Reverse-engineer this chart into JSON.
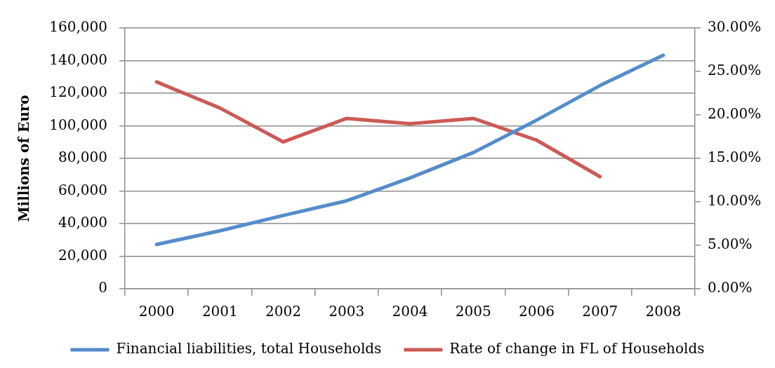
{
  "chart_data": {
    "type": "line",
    "categories": [
      "2000",
      "2001",
      "2002",
      "2003",
      "2004",
      "2005",
      "2006",
      "2007",
      "2008"
    ],
    "ylabel": "Millions of Euro",
    "ylim": [
      0,
      160000
    ],
    "yticks": [
      {
        "value": 0,
        "label": "0"
      },
      {
        "value": 20000,
        "label": "20,000"
      },
      {
        "value": 40000,
        "label": "40,000"
      },
      {
        "value": 60000,
        "label": "60,000"
      },
      {
        "value": 80000,
        "label": "80,000"
      },
      {
        "value": 100000,
        "label": "100,000"
      },
      {
        "value": 120000,
        "label": "120,000"
      },
      {
        "value": 140000,
        "label": "140,000"
      },
      {
        "value": 160000,
        "label": "160,000"
      }
    ],
    "y2lim": [
      0,
      30
    ],
    "y2ticks": [
      {
        "value": 0,
        "label": "0.00%"
      },
      {
        "value": 5,
        "label": "5.00%"
      },
      {
        "value": 10,
        "label": "10.00%"
      },
      {
        "value": 15,
        "label": "15.00%"
      },
      {
        "value": 20,
        "label": "20.00%"
      },
      {
        "value": 25,
        "label": "25.00%"
      },
      {
        "value": 30,
        "label": "30.00%"
      }
    ],
    "series": [
      {
        "name": "Financial liabilities, total Households",
        "color": "#558ccb",
        "values": [
          27200,
          35600,
          45000,
          54000,
          68000,
          83600,
          103500,
          124700,
          143300
        ]
      },
      {
        "name": "Rate of change in FL of Households",
        "color": "#cc5a55",
        "axis": "y2",
        "values": [
          23.8,
          20.8,
          16.9,
          19.6,
          19.0,
          19.6,
          17.1,
          12.9,
          null
        ]
      }
    ],
    "grid": "y",
    "legend": "bottom",
    "marker": "none"
  }
}
